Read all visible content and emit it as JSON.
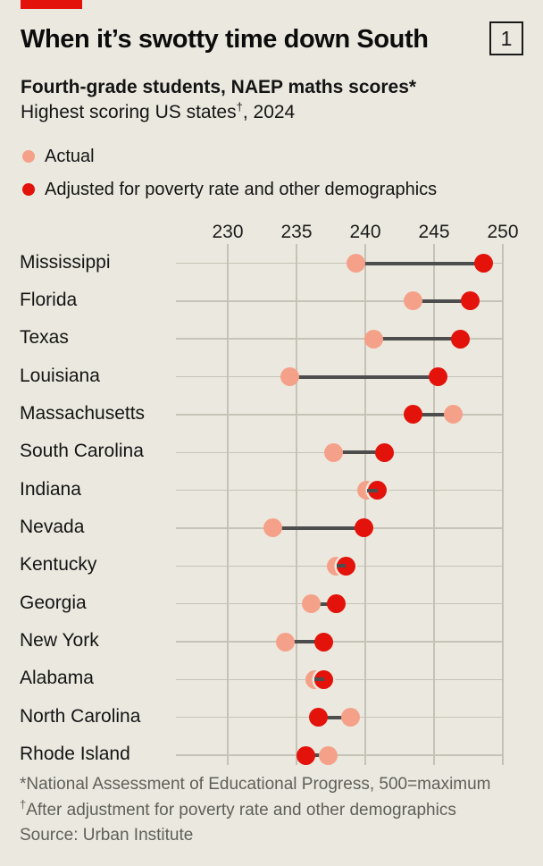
{
  "header": {
    "title": "When it’s swotty time down South",
    "figure_number": "1",
    "subtitle_bold": "Fourth-grade students, NAEP maths scores*",
    "subtitle_regular": {
      "pre": "Highest scoring US states",
      "sup": "†",
      "post": ", 2024"
    }
  },
  "legend": {
    "items": [
      {
        "label": "Actual",
        "color": "#F5A189"
      },
      {
        "label": "Adjusted for poverty rate and other demographics",
        "color": "#E3120B"
      }
    ]
  },
  "chart_data": {
    "type": "dumbbell",
    "orientation": "horizontal",
    "grid": true,
    "x_ticks": [
      230,
      235,
      240,
      245,
      250
    ],
    "x_range": [
      226,
      251.5
    ],
    "categories": [
      "Mississippi",
      "Florida",
      "Texas",
      "Louisiana",
      "Massachusetts",
      "South Carolina",
      "Indiana",
      "Nevada",
      "Kentucky",
      "Georgia",
      "New York",
      "Alabama",
      "North Carolina",
      "Rhode Island"
    ],
    "series": [
      {
        "name": "Actual",
        "color": "#F5A189",
        "values": [
          239.3,
          243.5,
          240.6,
          234.5,
          246.4,
          237.7,
          240.1,
          233.3,
          237.9,
          236.1,
          234.2,
          236.3,
          238.9,
          237.3
        ]
      },
      {
        "name": "Adjusted for poverty rate and other demographics",
        "color": "#E3120B",
        "values": [
          248.6,
          247.6,
          246.9,
          245.3,
          243.5,
          241.4,
          240.9,
          239.9,
          238.6,
          237.9,
          237.0,
          237.0,
          236.6,
          235.7
        ]
      }
    ]
  },
  "footnotes": {
    "line1": "*National Assessment of Educational Progress, 500=maximum",
    "line2_sup": "†",
    "line2": "After adjustment for poverty rate and other demographics",
    "line3": "Source: Urban Institute"
  },
  "colors": {
    "background": "#EBE9DF",
    "accent_red": "#E3120B",
    "accent_salmon": "#F5A189",
    "gridline": "#C5C3B8",
    "connector": "#4D4D4D"
  }
}
